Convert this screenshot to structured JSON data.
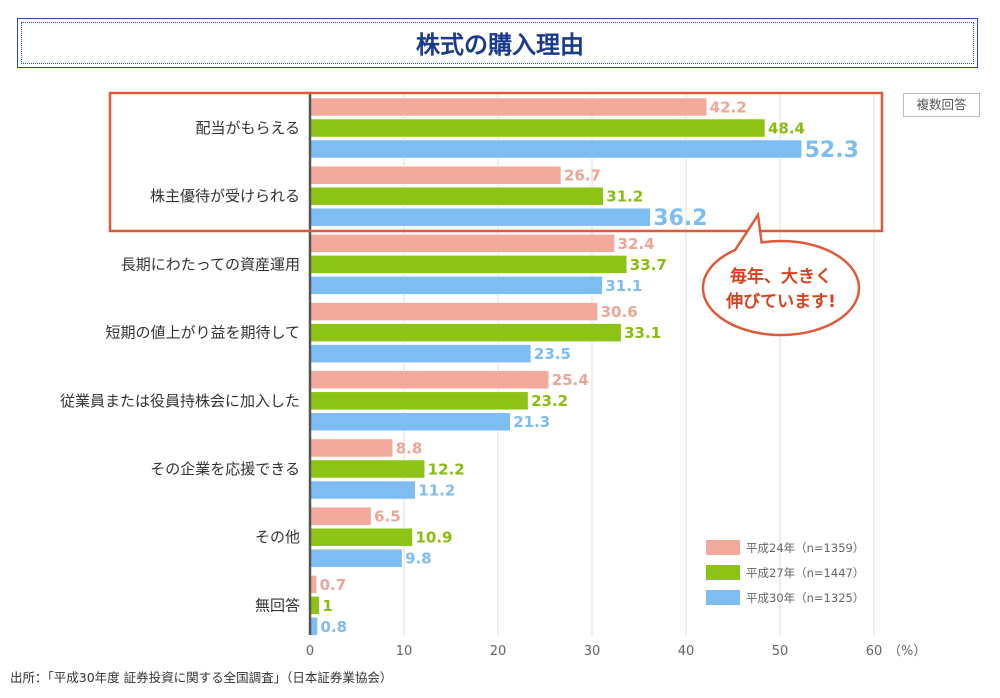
{
  "title": "株式の購入理由",
  "note": "複数回答",
  "source": "出所：「平成30年度 証券投資に関する全国調査」（日本証券業協会）",
  "callout": {
    "line1": "毎年、大きく",
    "line2": "伸びています!"
  },
  "colors": {
    "series": [
      "#f2aa9c",
      "#8cc314",
      "#7ebdf2"
    ],
    "highlight": "#e05a3a",
    "title": "#1a3a8c"
  },
  "chart_data": {
    "type": "bar",
    "orientation": "horizontal",
    "categories": [
      "配当がもらえる",
      "株主優待が受けられる",
      "長期にわたっての資産運用",
      "短期の値上がり益を期待して",
      "従業員または役員持株会に加入した",
      "その企業を応援できる",
      "その他",
      "無回答"
    ],
    "series": [
      {
        "name": "平成24年（n=1359）",
        "values": [
          42.2,
          26.7,
          32.4,
          30.6,
          25.4,
          8.8,
          6.5,
          0.7
        ]
      },
      {
        "name": "平成27年（n=1447）",
        "values": [
          48.4,
          31.2,
          33.7,
          33.1,
          23.2,
          12.2,
          10.9,
          1
        ]
      },
      {
        "name": "平成30年（n=1325）",
        "values": [
          52.3,
          36.2,
          31.1,
          23.5,
          21.3,
          11.2,
          9.8,
          0.8
        ]
      }
    ],
    "xlim": [
      0,
      60
    ],
    "xticks": [
      "0",
      "10",
      "20",
      "30",
      "40",
      "50",
      "60"
    ],
    "xunit": "（%）",
    "grid": true,
    "legend_position": "bottom-right",
    "highlighted_categories": [
      0,
      1
    ]
  }
}
